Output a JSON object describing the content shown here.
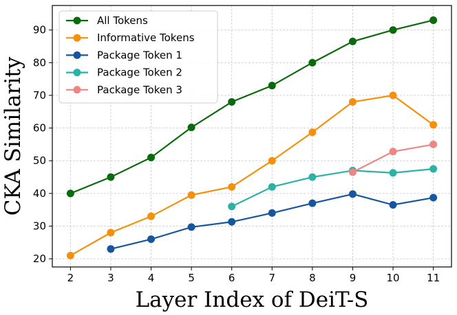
{
  "chart_data": {
    "type": "line",
    "xlabel": "Layer Index of DeiT-S",
    "ylabel": "CKA Similarity",
    "x_ticks": [
      2,
      3,
      4,
      5,
      6,
      7,
      8,
      9,
      10,
      11
    ],
    "y_ticks": [
      20,
      30,
      40,
      50,
      60,
      70,
      80,
      90
    ],
    "xlim": [
      1.55,
      11.45
    ],
    "ylim": [
      17.5,
      97.5
    ],
    "grid": true,
    "legend_position": "top-left",
    "series": [
      {
        "name": "All Tokens",
        "color": "#0b6a0b",
        "x": [
          2,
          3,
          4,
          5,
          6,
          7,
          8,
          9,
          10,
          11
        ],
        "y": [
          40,
          45,
          51,
          60.2,
          68,
          73,
          80,
          86.5,
          90,
          93
        ]
      },
      {
        "name": "Informative Tokens",
        "color": "#f5900c",
        "x": [
          2,
          3,
          4,
          5,
          6,
          7,
          8,
          9,
          10,
          11
        ],
        "y": [
          21,
          28,
          33,
          39.5,
          42,
          50,
          58.7,
          68,
          70,
          61
        ]
      },
      {
        "name": "Package Token 1",
        "color": "#16569e",
        "x": [
          3,
          4,
          5,
          6,
          7,
          8,
          9,
          10,
          11
        ],
        "y": [
          23,
          26,
          29.7,
          31.3,
          34,
          37,
          39.8,
          36.5,
          38.7
        ]
      },
      {
        "name": "Package Token 2",
        "color": "#2bb2a6",
        "x": [
          6,
          7,
          8,
          9,
          10,
          11
        ],
        "y": [
          36,
          42,
          45,
          47,
          46.3,
          47.5
        ]
      },
      {
        "name": "Package Token 3",
        "color": "#ef8585",
        "x": [
          9,
          10,
          11
        ],
        "y": [
          46.5,
          52.8,
          55
        ]
      }
    ]
  }
}
